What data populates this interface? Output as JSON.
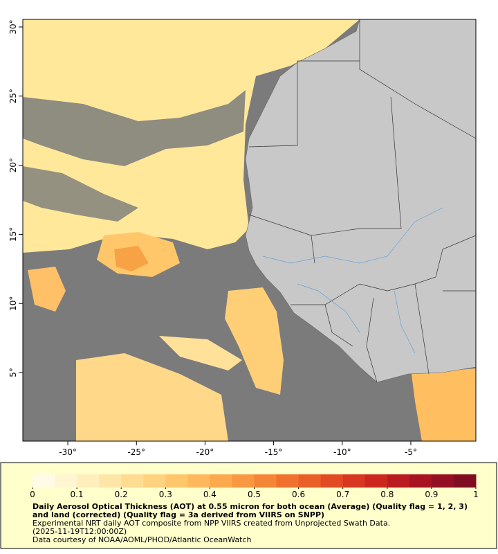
{
  "map": {
    "lonlim": [
      -33.28,
      -0.26
    ],
    "latlim": [
      0.04,
      30.55
    ],
    "lon_ticks": [
      {
        "value": -30,
        "label": "-30°"
      },
      {
        "value": -25,
        "label": "-25°"
      },
      {
        "value": -20,
        "label": "-20°"
      },
      {
        "value": -15,
        "label": "-15°"
      },
      {
        "value": -10,
        "label": "-10°"
      },
      {
        "value": -5,
        "label": "-5°"
      }
    ],
    "lat_ticks": [
      {
        "value": 5,
        "label": "5°"
      },
      {
        "value": 10,
        "label": "10°"
      },
      {
        "value": 15,
        "label": "15°"
      },
      {
        "value": 20,
        "label": "20°"
      },
      {
        "value": 25,
        "label": "25°"
      },
      {
        "value": 30,
        "label": "30°"
      }
    ]
  },
  "colorbar": {
    "lim": [
      0,
      1
    ],
    "ticks": [
      0,
      0.1,
      0.2,
      0.3,
      0.4,
      0.5,
      0.6,
      0.7,
      0.8,
      0.9,
      1
    ],
    "colors": [
      "#fffbe6",
      "#fff5d0",
      "#ffefbd",
      "#ffe6a8",
      "#ffdc92",
      "#ffd27f",
      "#ffc66c",
      "#ffb95c",
      "#fca94d",
      "#f99841",
      "#f58536",
      "#f0712d",
      "#ea5e27",
      "#e24a23",
      "#d83620",
      "#cc261f",
      "#bb1a20",
      "#a81322",
      "#950f23",
      "#800c22"
    ]
  },
  "caption": {
    "title": "Daily Aerosol Optical Thickness (AOT) at 0.55 micron for both ocean (Average) (Quality flag = 1, 2, 3) and land (corrected) (Quality flag = 3a derived from VIIRS on SNPP)",
    "subtitle": "Experimental NRT daily AOT composite from NPP VIIRS created from Unprojected Swath Data.",
    "date": "(2025-11-19T12:00:00Z)",
    "credit": "Data courtesy of NOAA/AOML/PHOD/Atlantic OceanWatch"
  }
}
